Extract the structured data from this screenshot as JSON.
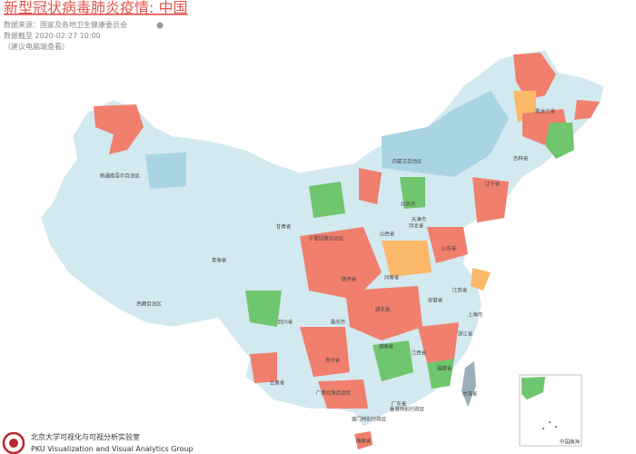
{
  "header": {
    "title": "新型冠状病毒肺炎疫情: 中国",
    "source": "数据来源：国家及各地卫生健康委员会",
    "updated": "数据截至 2020-02-27 10:00",
    "note": "（建议电脑端查看）"
  },
  "map": {
    "labels": [
      "黑龙江省",
      "吉林省",
      "辽宁省",
      "内蒙古自治区",
      "新疆维吾尔自治区",
      "甘肃省",
      "宁夏回族自治区",
      "青海省",
      "西藏自治区",
      "北京市",
      "天津市",
      "河北省",
      "山西省",
      "山东省",
      "河南省",
      "陕西省",
      "江苏省",
      "安徽省",
      "上海市",
      "湖北省",
      "重庆市",
      "四川省",
      "浙江省",
      "湖南省",
      "江西省",
      "贵州省",
      "福建省",
      "云南省",
      "广西壮族自治区",
      "广东省",
      "香港特别行政区",
      "澳门特别行政区",
      "台湾省",
      "海南省",
      "中国南海"
    ]
  },
  "footer": {
    "lab_cn": "北京大学可视化与可视分析实验室",
    "lab_en": "PKU Visualization and Visual Analytics Group"
  }
}
